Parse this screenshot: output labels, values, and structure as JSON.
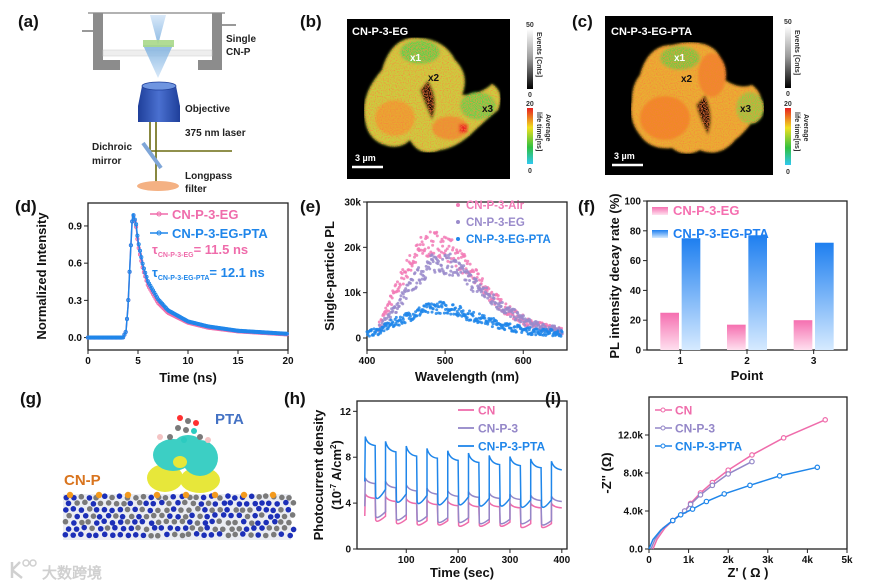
{
  "panel_labels": {
    "a": "(a)",
    "b": "(b)",
    "c": "(c)",
    "d": "(d)",
    "e": "(e)",
    "f": "(f)",
    "g": "(g)",
    "h": "(h)",
    "i": "(i)"
  },
  "schematic": {
    "sample_line1": "Single",
    "sample_line2": "CN-P",
    "objective": "Objective",
    "laser": "375 nm laser",
    "mirror_line1": "Dichroic",
    "mirror_line2": "mirror",
    "filter_line1": "Longpass",
    "filter_line2": "filter"
  },
  "flim": [
    {
      "title": "CN-P-3-EG",
      "points": [
        "x1",
        "x2",
        "x3"
      ],
      "scale_bar": "3 µm",
      "events_label": "Events [Cnts]",
      "events_max": "50",
      "events_min": "0",
      "lifetime_label1": "Average",
      "lifetime_label2": "life time[ns]",
      "lifetime_max": "20",
      "lifetime_min": "0"
    },
    {
      "title": "CN-P-3-EG-PTA",
      "points": [
        "x1",
        "x2",
        "x3"
      ],
      "scale_bar": "3 µm",
      "events_label": "Events [Cnts]",
      "events_max": "50",
      "events_min": "0",
      "lifetime_label1": "Average",
      "lifetime_label2": "life time[ns]",
      "lifetime_max": "20",
      "lifetime_min": "0"
    }
  ],
  "model": {
    "molecule_label": "PTA",
    "substrate_label": "CN-P"
  },
  "watermark": "大数跨境",
  "colors": {
    "pink": "#ef6cab",
    "purple": "#9487c8",
    "blue": "#1f86ea",
    "cnp_orange": "#d9741e",
    "pta_blue": "#4472c4"
  },
  "chart_data": [
    {
      "id": "d",
      "type": "line",
      "xlabel": "Time (ns)",
      "ylabel": "Normalized Intensity",
      "xlim": [
        0,
        20
      ],
      "ylim": [
        -0.1,
        1.085
      ],
      "xticks": [
        0,
        5,
        10,
        15,
        20
      ],
      "xtick_labels": [
        "0",
        "5",
        "10",
        "15",
        "20"
      ],
      "yticks": [
        0,
        0.3,
        0.6,
        0.9
      ],
      "ytick_labels": [
        "0.0",
        "0.3",
        "0.6",
        "0.9"
      ],
      "x": [
        0,
        3.5,
        3.8,
        4.0,
        4.2,
        4.4,
        4.5,
        4.8,
        5,
        5.5,
        6,
        7,
        8,
        10,
        12,
        15,
        20
      ],
      "series": [
        {
          "name": "CN-P-3-EG",
          "color": "#ef6cab",
          "values": [
            0,
            0,
            0.05,
            0.25,
            0.6,
            0.92,
            1.0,
            0.9,
            0.75,
            0.55,
            0.42,
            0.28,
            0.2,
            0.12,
            0.08,
            0.05,
            0.025
          ]
        },
        {
          "name": "CN-P-3-EG-PTA",
          "color": "#1f86ea",
          "values": [
            0,
            0,
            0.05,
            0.25,
            0.6,
            0.92,
            1.0,
            0.92,
            0.78,
            0.58,
            0.45,
            0.31,
            0.22,
            0.13,
            0.09,
            0.055,
            0.03
          ]
        }
      ],
      "annotations": [
        {
          "symbol": "τ",
          "sub": "CN-P-3-EG",
          "value": "= 11.5 ns",
          "color": "#ef6cab"
        },
        {
          "symbol": "τ",
          "sub": "CN-P-3-EG-PTA",
          "value": "= 12.1 ns",
          "color": "#1f86ea"
        }
      ]
    },
    {
      "id": "e",
      "type": "scatter",
      "xlabel": "Wavelength (nm)",
      "ylabel": "Single-particle PL",
      "xlim": [
        400,
        656
      ],
      "ylim": [
        -2650,
        30000
      ],
      "xticks": [
        400,
        500,
        600
      ],
      "xtick_labels": [
        "400",
        "500",
        "600"
      ],
      "yticks": [
        0,
        10000,
        20000,
        30000
      ],
      "ytick_labels": [
        "0",
        "10k",
        "20k",
        "30k"
      ],
      "series": [
        {
          "name": "CN-P-3-Air",
          "color": "#f27bb6",
          "x": [
            415,
            430,
            450,
            470,
            490,
            510,
            530,
            550,
            580,
            610,
            650
          ],
          "values": [
            2500,
            8000,
            15000,
            20000,
            21000,
            19000,
            15000,
            11000,
            6000,
            3000,
            1500
          ]
        },
        {
          "name": "CN-P-3-EG",
          "color": "#9a8bcb",
          "x": [
            415,
            430,
            450,
            470,
            490,
            510,
            530,
            550,
            580,
            610,
            650
          ],
          "values": [
            2000,
            5000,
            10000,
            14500,
            17000,
            16000,
            13000,
            10000,
            6000,
            3000,
            1500
          ]
        },
        {
          "name": "CN-P-3-EG-PTA",
          "color": "#1f86ea",
          "x": [
            400,
            415,
            430,
            450,
            470,
            490,
            510,
            530,
            550,
            580,
            610,
            650
          ],
          "values": [
            1000,
            1500,
            3000,
            4500,
            6000,
            6800,
            6500,
            5000,
            4000,
            2500,
            1500,
            1000
          ]
        }
      ]
    },
    {
      "id": "f",
      "type": "bar",
      "xlabel": "Point",
      "ylabel": "PL intensity decay rate (%)",
      "categories": [
        "1",
        "2",
        "3"
      ],
      "ylim": [
        0,
        100
      ],
      "yticks": [
        0,
        20,
        40,
        60,
        80,
        100
      ],
      "ytick_labels": [
        "0",
        "20",
        "40",
        "60",
        "80",
        "100"
      ],
      "series": [
        {
          "name": "CN-P-3-EG",
          "color": "#f56fb0",
          "values": [
            25,
            17,
            20
          ]
        },
        {
          "name": "CN-P-3-EG-PTA",
          "color": "#1e7ff0",
          "values": [
            75,
            77,
            72
          ]
        }
      ]
    },
    {
      "id": "h",
      "type": "line",
      "xlabel": "Time (sec)",
      "ylabel": "Photocurrent density",
      "ylabel_unit": {
        "open": "(10",
        "exp": "-7",
        "mid": " A/cm",
        "exp2": "2",
        "close": ")"
      },
      "xlim": [
        5,
        410
      ],
      "ylim": [
        0,
        12.9
      ],
      "xticks": [
        100,
        200,
        300,
        400
      ],
      "xtick_labels": [
        "100",
        "200",
        "300",
        "400"
      ],
      "yticks": [
        0,
        4,
        8,
        12
      ],
      "ytick_labels": [
        "0",
        "4",
        "8",
        "12"
      ],
      "on_start_times": [
        20,
        60,
        100,
        140,
        180,
        220,
        260,
        300,
        340,
        380
      ],
      "on_duration": 20,
      "end_time": 400,
      "series": [
        {
          "name": "CN",
          "color": "#ef6cab",
          "on": [
            4.8,
            4.5,
            4.3,
            4.2,
            4.1,
            4.0,
            4.0,
            3.9,
            3.9,
            3.9
          ],
          "off": [
            2.2,
            2.0,
            1.9,
            1.9,
            1.8,
            1.8,
            1.8,
            1.7,
            1.7,
            1.7
          ]
        },
        {
          "name": "CN-P-3",
          "color": "#9487c8",
          "on": [
            6.2,
            5.8,
            5.5,
            5.2,
            5.0,
            4.9,
            4.8,
            4.7,
            4.6,
            4.5
          ],
          "off": [
            2.5,
            2.3,
            2.2,
            2.1,
            2.1,
            2.0,
            2.0,
            2.0,
            1.9,
            1.9
          ]
        },
        {
          "name": "CN-P-3-PTA",
          "color": "#1f86ea",
          "on": [
            9.8,
            9.2,
            8.8,
            8.6,
            8.4,
            8.2,
            8.0,
            7.9,
            7.7,
            7.5
          ],
          "off": [
            4.0,
            3.7,
            3.6,
            3.5,
            3.5,
            3.4,
            3.4,
            3.3,
            3.3,
            3.3
          ]
        }
      ]
    },
    {
      "id": "i",
      "type": "line",
      "xlabel": "Z' ( Ω )",
      "ylabel": "-Z'' (Ω)",
      "xlim": [
        0,
        5000
      ],
      "ylim": [
        0,
        16000
      ],
      "xticks": [
        0,
        1000,
        2000,
        3000,
        4000,
        5000
      ],
      "xtick_labels": [
        "0",
        "1k",
        "2k",
        "3k",
        "4k",
        "5k"
      ],
      "yticks": [
        0,
        4000,
        8000,
        12000
      ],
      "ytick_labels": [
        "0.0",
        "4.0k",
        "8.0k",
        "12.0k"
      ],
      "series": [
        {
          "name": "CN",
          "color": "#ef6cab",
          "x": [
            100,
            200,
            400,
            600,
            900,
            1050,
            1300,
            1600,
            2000,
            2600,
            3400,
            4450
          ],
          "values": [
            0,
            1000,
            2200,
            3000,
            4000,
            4800,
            5900,
            7000,
            8300,
            9900,
            11700,
            13600
          ]
        },
        {
          "name": "CN-P-3",
          "color": "#9487c8",
          "x": [
            50,
            150,
            350,
            600,
            900,
            1050,
            1300,
            1600,
            2000,
            2600
          ],
          "values": [
            0,
            1000,
            2200,
            3000,
            4000,
            4700,
            5700,
            6700,
            7900,
            9200
          ]
        },
        {
          "name": "CN-P-3-PTA",
          "color": "#1f86ea",
          "x": [
            0,
            100,
            300,
            600,
            800,
            1100,
            1450,
            1900,
            2550,
            3300,
            4250
          ],
          "values": [
            0,
            1000,
            2000,
            3000,
            3600,
            4200,
            5000,
            5800,
            6700,
            7700,
            8600
          ]
        }
      ]
    }
  ]
}
